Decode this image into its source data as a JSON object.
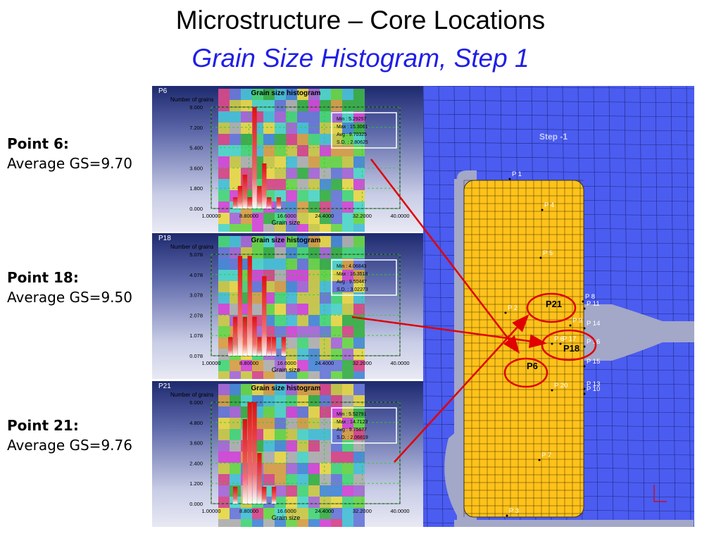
{
  "title": "Microstructure – Core Locations",
  "subtitle": "Grain Size Histogram, Step 1",
  "points": [
    {
      "label": "Point 6:",
      "value": "Average GS=9.70"
    },
    {
      "label": "Point 18:",
      "value": "Average GS=9.50"
    },
    {
      "label": "Point 21:",
      "value": "Average GS=9.76"
    }
  ],
  "chart_data": [
    {
      "type": "bar",
      "panel_label": "P6",
      "title": "Grain size histogram",
      "ylabel": "Number of grains",
      "xlabel": "Grain size",
      "xticks": [
        "1.00000",
        "8.80000",
        "16.6000",
        "24.4000",
        "32.2000",
        "40.0000"
      ],
      "yticks": [
        "0.000",
        "1.800",
        "3.600",
        "5.400",
        "7.200",
        "9.000"
      ],
      "xlim": [
        1.0,
        40.0
      ],
      "ylim": [
        0,
        9.0
      ],
      "stats": [
        "Min : 5.29257",
        "Max : 15.3061",
        "Avg : 9.70325",
        "S.D. : 2.80625"
      ],
      "bars": [
        {
          "x": 6.0,
          "value": 1.0
        },
        {
          "x": 7.0,
          "value": 2.0
        },
        {
          "x": 8.0,
          "value": 3.0
        },
        {
          "x": 9.0,
          "value": 1.0
        },
        {
          "x": 10.0,
          "value": 9.0
        },
        {
          "x": 11.0,
          "value": 2.0
        },
        {
          "x": 12.0,
          "value": 4.0
        },
        {
          "x": 13.0,
          "value": 1.0
        },
        {
          "x": 15.0,
          "value": 1.0
        }
      ]
    },
    {
      "type": "bar",
      "panel_label": "P18",
      "title": "Grain size histogram",
      "ylabel": "Number of grains",
      "xlabel": "Grain size",
      "xticks": [
        "1.00000",
        "8.80000",
        "16.6000",
        "24.4000",
        "32.2000",
        "40.0000"
      ],
      "yticks": [
        "0.078",
        "1.078",
        "2.078",
        "3.078",
        "4.078",
        "5.078"
      ],
      "xlim": [
        1.0,
        40.0
      ],
      "ylim": [
        0.078,
        5.078
      ],
      "stats": [
        "Min : 4.06843",
        "Max : 16.3518",
        "Avg : 9.50447",
        "S.D. : 3.02273"
      ],
      "bars": [
        {
          "x": 5.0,
          "value": 1.0
        },
        {
          "x": 6.0,
          "value": 2.0
        },
        {
          "x": 7.0,
          "value": 5.0
        },
        {
          "x": 8.0,
          "value": 2.0
        },
        {
          "x": 9.0,
          "value": 5.0
        },
        {
          "x": 10.0,
          "value": 2.0
        },
        {
          "x": 11.0,
          "value": 1.0
        },
        {
          "x": 12.0,
          "value": 4.0
        },
        {
          "x": 13.0,
          "value": 1.0
        },
        {
          "x": 14.0,
          "value": 1.0
        },
        {
          "x": 16.0,
          "value": 1.0
        }
      ]
    },
    {
      "type": "bar",
      "panel_label": "P21",
      "title": "Grain size histogram",
      "ylabel": "Number of grains",
      "xlabel": "Grain size",
      "xticks": [
        "1.00000",
        "8.80000",
        "16.6000",
        "24.4000",
        "32.2000",
        "40.0000"
      ],
      "yticks": [
        "0.000",
        "1.200",
        "2.400",
        "3.600",
        "4.800",
        "6.000"
      ],
      "xlim": [
        1.0,
        40.0
      ],
      "ylim": [
        0,
        6.0
      ],
      "stats": [
        "Min : 5.52791",
        "Max : 14.7123",
        "Avg : 9.75677",
        "S.D. : 2.06819"
      ],
      "bars": [
        {
          "x": 6.0,
          "value": 1.0
        },
        {
          "x": 8.0,
          "value": 5.0
        },
        {
          "x": 9.0,
          "value": 6.0
        },
        {
          "x": 10.0,
          "value": 6.0
        },
        {
          "x": 11.0,
          "value": 3.0
        },
        {
          "x": 12.0,
          "value": 1.0
        },
        {
          "x": 14.0,
          "value": 1.0
        }
      ]
    }
  ],
  "mesh": {
    "step_label": "Step  -1",
    "node_labels": [
      "P 1",
      "P 4",
      "P 5",
      "P 2",
      "P 8",
      "P 11",
      "P 14",
      "P 16",
      "P 15",
      "P 13",
      "P 10",
      "P 20",
      "P 7",
      "P 3",
      "P 9",
      "P 6",
      "P 17"
    ],
    "callouts": [
      "P21",
      "P18",
      "P6"
    ]
  },
  "colors": {
    "title": "#000000",
    "subtitle": "#1f1fe6",
    "bar": "#e01010",
    "mesh_background": "#4b5cf0",
    "core": "#ffc21a",
    "die": "#a3a7c8",
    "arrow": "#e00000"
  }
}
